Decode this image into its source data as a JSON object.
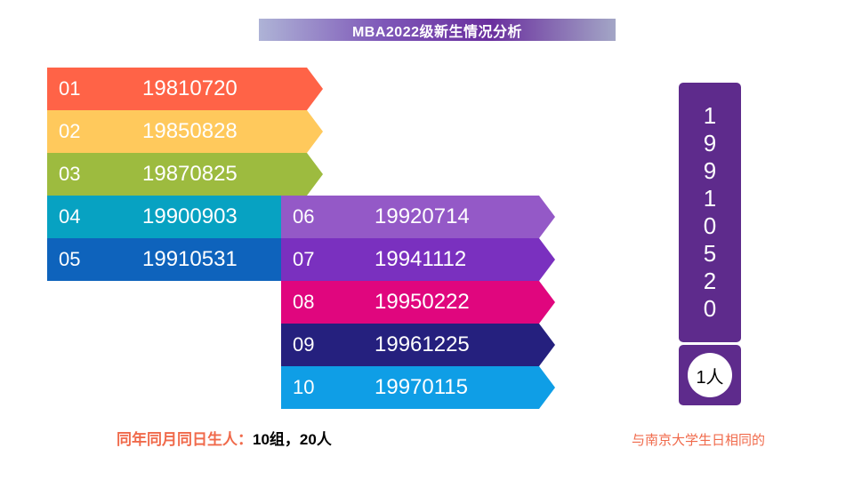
{
  "title": "MBA2022级新生情况分析",
  "rows_left": [
    {
      "index": "01",
      "date": "19810720",
      "color": "#ff6347"
    },
    {
      "index": "02",
      "date": "19850828",
      "color": "#ffc95c"
    },
    {
      "index": "03",
      "date": "19870825",
      "color": "#9dbb3f"
    },
    {
      "index": "04",
      "date": "19900903",
      "color": "#07a2c2"
    },
    {
      "index": "05",
      "date": "19910531",
      "color": "#0e63bc"
    }
  ],
  "rows_right": [
    {
      "index": "06",
      "date": "19920714",
      "color": "#9459c7"
    },
    {
      "index": "07",
      "date": "19941112",
      "color": "#7a30bf"
    },
    {
      "index": "08",
      "date": "19950222",
      "color": "#e0067e"
    },
    {
      "index": "09",
      "date": "19961225",
      "color": "#25207e"
    },
    {
      "index": "10",
      "date": "19970115",
      "color": "#0f9ee6"
    }
  ],
  "university_date_digits": [
    "1",
    "9",
    "9",
    "1",
    "0",
    "5",
    "2",
    "0"
  ],
  "university_count": "1人",
  "same_birthday_label": "同年同月同日生人：",
  "same_birthday_value": "10组，20人",
  "note": "与南京大学生日相同的",
  "colors": {
    "panel_purple": "#5e2b8c",
    "caption_orange": "#f06a4b"
  }
}
